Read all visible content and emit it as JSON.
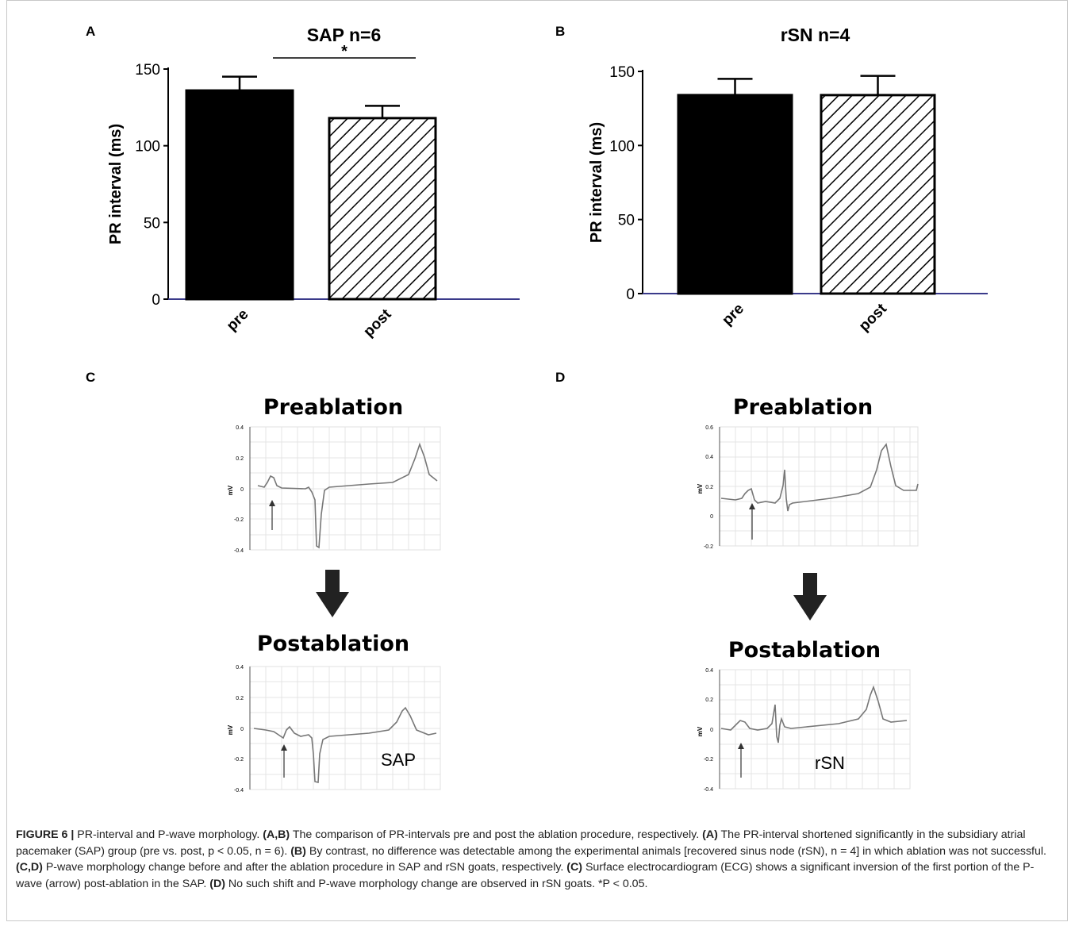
{
  "panels": {
    "a": {
      "letter": "A",
      "chart_data": {
        "type": "bar",
        "title": "SAP n=6",
        "ylabel": "PR interval (ms)",
        "categories": [
          "pre",
          "post"
        ],
        "values": [
          136,
          118
        ],
        "error": [
          9,
          8
        ],
        "ylim": [
          0,
          150
        ],
        "yticks": [
          "0",
          "50",
          "100",
          "150"
        ],
        "significance": "*",
        "fills": [
          "solid-black",
          "diagonal-hatch"
        ]
      }
    },
    "b": {
      "letter": "B",
      "chart_data": {
        "type": "bar",
        "title": "rSN n=4",
        "ylabel": "PR interval (ms)",
        "categories": [
          "pre",
          "post"
        ],
        "values": [
          134,
          134
        ],
        "error": [
          11,
          13
        ],
        "ylim": [
          0,
          150
        ],
        "yticks": [
          "0",
          "50",
          "100",
          "150"
        ],
        "fills": [
          "solid-black",
          "diagonal-hatch"
        ]
      }
    },
    "c": {
      "letter": "C",
      "pre_title": "Preablation",
      "post_title": "Postablation",
      "ylabel": "mV",
      "pre_ticks": [
        "0.4",
        "0.2",
        "0",
        "-0.2",
        "-0.4"
      ],
      "post_ticks": [
        "0.4",
        "0.2",
        "0",
        "-0.2",
        "-0.4"
      ],
      "group_label": "SAP"
    },
    "d": {
      "letter": "D",
      "pre_title": "Preablation",
      "post_title": "Postablation",
      "ylabel": "mV",
      "pre_ticks": [
        "0.6",
        "0.4",
        "0.2",
        "0",
        "-0.2"
      ],
      "post_ticks": [
        "0.4",
        "0.2",
        "0",
        "-0.2",
        "-0.4"
      ],
      "group_label": "rSN"
    }
  },
  "caption": {
    "figure_label": "FIGURE 6 |",
    "title": "PR-interval and P-wave morphology.",
    "ab_ref": "(A,B)",
    "ab_text": "The comparison of PR-intervals pre and post the ablation procedure, respectively.",
    "a_ref": "(A)",
    "a_text": "The PR-interval shortened significantly in the subsidiary atrial pacemaker (SAP) group (pre vs. post, p < 0.05, n = 6).",
    "b_ref": "(B)",
    "b_text": "By contrast, no difference was detectable among the experimental animals [recovered sinus node (rSN), n = 4] in which ablation was not successful.",
    "cd_ref": "(C,D)",
    "cd_text": "P-wave morphology change before and after the ablation procedure in SAP and rSN goats, respectively.",
    "c_ref": "(C)",
    "c_text": "Surface electrocardiogram (ECG) shows a significant inversion of the first portion of the P-wave (arrow) post-ablation in the SAP.",
    "d_ref": "(D)",
    "d_text": "No such shift and P-wave morphology change are observed in rSN goats. *P < 0.05."
  }
}
